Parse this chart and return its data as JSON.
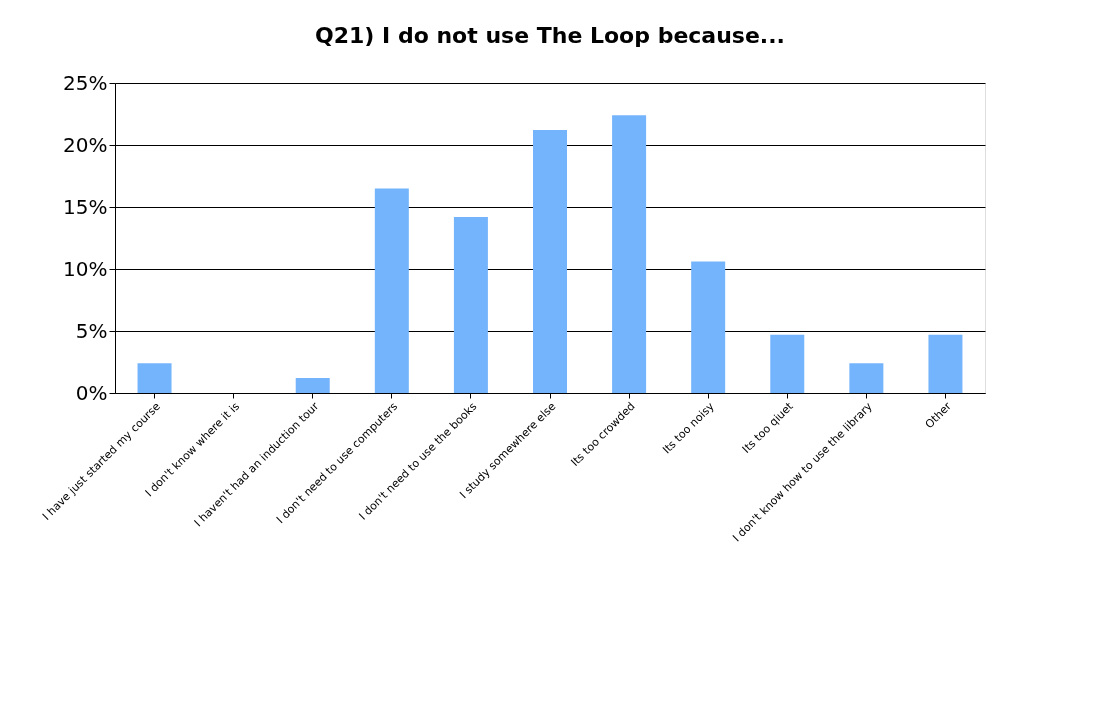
{
  "chart_data": {
    "type": "bar",
    "title": "Q21) I do not use The Loop because...",
    "categories": [
      "I have just started my course",
      "I don't know where it is",
      "I haven't had an induction tour",
      "I don't need to use computers",
      "I don't need to use the books",
      "I study somewhere else",
      "Its too crowded",
      "Its too noisy",
      "Its too qiuet",
      "I don't know how to use the library",
      "Other"
    ],
    "values": [
      2.4,
      0,
      1.2,
      16.5,
      14.2,
      21.2,
      22.4,
      10.6,
      4.7,
      2.4,
      4.7
    ],
    "color": "#74b4fc",
    "ylim": [
      0,
      25
    ],
    "yticks": [
      {
        "value": 0,
        "label": "0%"
      },
      {
        "value": 5,
        "label": "5%"
      },
      {
        "value": 10,
        "label": "10%"
      },
      {
        "value": 15,
        "label": "15%"
      },
      {
        "value": 20,
        "label": "20%"
      },
      {
        "value": 25,
        "label": "25%"
      }
    ],
    "grid": "y"
  }
}
